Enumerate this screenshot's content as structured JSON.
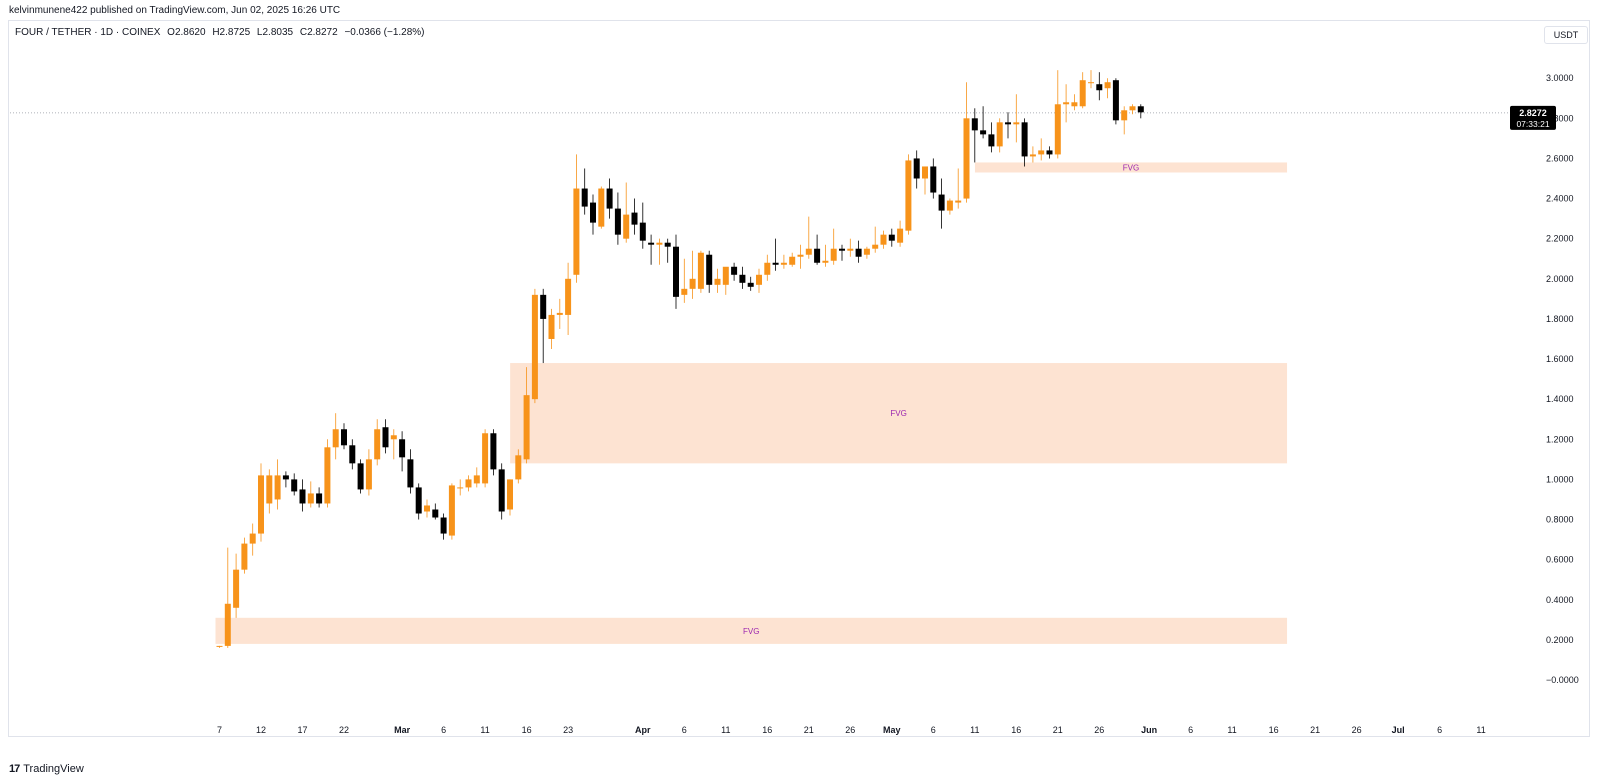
{
  "header": {
    "published": "kelvinmunene422 published on TradingView.com, Jun 02, 2025 16:26 UTC"
  },
  "legend": {
    "symbol": "FOUR / TETHER · 1D · COINEX",
    "open": "O2.8620",
    "high": "H2.8725",
    "low": "L2.8035",
    "close": "C2.8272",
    "change": "−0.0366 (−1.28%)"
  },
  "currency_button": "USDT",
  "price_label": {
    "price": "2.8272",
    "countdown": "07:33:21"
  },
  "footer": {
    "logo_text": "TradingView",
    "logo_mark": "17"
  },
  "colors": {
    "up": "#f7931a",
    "down": "#000000",
    "fvg_fill": "#fde3d2",
    "fvg_text": "#9c27b0",
    "axis_text": "#131722",
    "price_line": "#9598a1"
  },
  "chart_data": {
    "type": "candlestick",
    "y_ticks": [
      "3.0000",
      "2.8000",
      "2.6000",
      "2.4000",
      "2.2000",
      "2.0000",
      "1.8000",
      "1.6000",
      "1.4000",
      "1.2000",
      "1.0000",
      "0.8000",
      "0.6000",
      "0.4000",
      "0.2000",
      "−0.0000"
    ],
    "ylim": [
      -0.1,
      3.3
    ],
    "x_ticks": [
      {
        "label": "7",
        "day": 0
      },
      {
        "label": "12",
        "day": 5
      },
      {
        "label": "17",
        "day": 10
      },
      {
        "label": "22",
        "day": 15
      },
      {
        "label": "Mar",
        "day": 22
      },
      {
        "label": "6",
        "day": 27
      },
      {
        "label": "11",
        "day": 32
      },
      {
        "label": "16",
        "day": 37
      },
      {
        "label": "23",
        "day": 42
      },
      {
        "label": "Apr",
        "day": 51
      },
      {
        "label": "6",
        "day": 56
      },
      {
        "label": "11",
        "day": 61
      },
      {
        "label": "16",
        "day": 66
      },
      {
        "label": "21",
        "day": 71
      },
      {
        "label": "26",
        "day": 76
      },
      {
        "label": "May",
        "day": 81
      },
      {
        "label": "6",
        "day": 86
      },
      {
        "label": "11",
        "day": 91
      },
      {
        "label": "16",
        "day": 96
      },
      {
        "label": "21",
        "day": 101
      },
      {
        "label": "26",
        "day": 106
      },
      {
        "label": "Jun",
        "day": 112
      },
      {
        "label": "6",
        "day": 117
      },
      {
        "label": "11",
        "day": 122
      },
      {
        "label": "16",
        "day": 127
      },
      {
        "label": "21",
        "day": 132
      },
      {
        "label": "26",
        "day": 137
      },
      {
        "label": "Jul",
        "day": 142
      },
      {
        "label": "6",
        "day": 147
      },
      {
        "label": "11",
        "day": 152
      }
    ],
    "fvg_zones": [
      {
        "label": "FVG",
        "x0": 0,
        "x1": 128.5,
        "y0": 0.18,
        "y1": 0.31
      },
      {
        "label": "FVG",
        "x0": 35.5,
        "x1": 128.5,
        "y0": 1.08,
        "y1": 1.58
      },
      {
        "label": "FVG",
        "x0": 91.5,
        "x1": 128.5,
        "y0": 2.53,
        "y1": 2.58
      }
    ],
    "last_price": 2.8272,
    "candles": [
      [
        0.17,
        0.17,
        0.16,
        0.17
      ],
      [
        0.17,
        0.66,
        0.16,
        0.38
      ],
      [
        0.36,
        0.63,
        0.31,
        0.55
      ],
      [
        0.55,
        0.71,
        0.53,
        0.68
      ],
      [
        0.68,
        0.78,
        0.62,
        0.73
      ],
      [
        0.73,
        1.08,
        0.69,
        1.02
      ],
      [
        0.88,
        1.05,
        0.83,
        1.02
      ],
      [
        0.9,
        1.1,
        0.85,
        1.02
      ],
      [
        1.02,
        1.04,
        0.96,
        1.0
      ],
      [
        1.0,
        1.03,
        0.92,
        0.94
      ],
      [
        0.95,
        1.0,
        0.84,
        0.88
      ],
      [
        0.88,
        0.99,
        0.86,
        0.93
      ],
      [
        0.93,
        0.96,
        0.86,
        0.88
      ],
      [
        0.88,
        1.2,
        0.86,
        1.16
      ],
      [
        1.16,
        1.33,
        1.1,
        1.25
      ],
      [
        1.25,
        1.28,
        1.15,
        1.17
      ],
      [
        1.17,
        1.2,
        1.05,
        1.08
      ],
      [
        1.08,
        1.1,
        0.93,
        0.95
      ],
      [
        0.95,
        1.15,
        0.92,
        1.1
      ],
      [
        1.1,
        1.3,
        1.07,
        1.25
      ],
      [
        1.26,
        1.3,
        1.13,
        1.16
      ],
      [
        1.2,
        1.25,
        1.1,
        1.22
      ],
      [
        1.2,
        1.24,
        1.04,
        1.11
      ],
      [
        1.1,
        1.15,
        0.93,
        0.96
      ],
      [
        0.96,
        0.98,
        0.8,
        0.83
      ],
      [
        0.84,
        0.9,
        0.81,
        0.87
      ],
      [
        0.85,
        0.88,
        0.8,
        0.81
      ],
      [
        0.81,
        0.83,
        0.7,
        0.73
      ],
      [
        0.72,
        0.98,
        0.7,
        0.97
      ],
      [
        0.96,
        1.0,
        0.92,
        0.96
      ],
      [
        0.96,
        1.02,
        0.94,
        1.0
      ],
      [
        0.98,
        1.06,
        0.96,
        1.02
      ],
      [
        0.98,
        1.25,
        0.96,
        1.23
      ],
      [
        1.23,
        1.25,
        1.02,
        1.05
      ],
      [
        1.05,
        1.08,
        0.8,
        0.84
      ],
      [
        0.85,
        1.0,
        0.82,
        1.0
      ],
      [
        1.0,
        1.15,
        0.98,
        1.12
      ],
      [
        1.1,
        1.56,
        1.08,
        1.42
      ],
      [
        1.4,
        1.95,
        1.38,
        1.92
      ],
      [
        1.92,
        1.95,
        1.58,
        1.8
      ],
      [
        1.7,
        1.85,
        1.65,
        1.82
      ],
      [
        1.82,
        1.9,
        1.75,
        1.83
      ],
      [
        1.82,
        2.08,
        1.72,
        2.0
      ],
      [
        2.02,
        2.62,
        1.98,
        2.45
      ],
      [
        2.45,
        2.55,
        2.32,
        2.36
      ],
      [
        2.38,
        2.42,
        2.22,
        2.28
      ],
      [
        2.26,
        2.46,
        2.25,
        2.45
      ],
      [
        2.45,
        2.5,
        2.3,
        2.35
      ],
      [
        2.35,
        2.43,
        2.17,
        2.22
      ],
      [
        2.2,
        2.48,
        2.18,
        2.32
      ],
      [
        2.33,
        2.4,
        2.22,
        2.27
      ],
      [
        2.28,
        2.38,
        2.15,
        2.19
      ],
      [
        2.18,
        2.22,
        2.07,
        2.17
      ],
      [
        2.17,
        2.2,
        2.07,
        2.18
      ],
      [
        2.18,
        2.2,
        2.08,
        2.16
      ],
      [
        2.16,
        2.22,
        1.85,
        1.91
      ],
      [
        1.92,
        2.1,
        1.88,
        1.95
      ],
      [
        1.95,
        2.14,
        1.9,
        2.0
      ],
      [
        1.95,
        2.14,
        1.93,
        2.13
      ],
      [
        2.12,
        2.14,
        1.93,
        1.97
      ],
      [
        1.97,
        2.05,
        1.93,
        2.0
      ],
      [
        1.97,
        2.05,
        1.92,
        2.06
      ],
      [
        2.06,
        2.08,
        1.99,
        2.02
      ],
      [
        2.02,
        2.06,
        1.95,
        1.98
      ],
      [
        1.98,
        2.01,
        1.94,
        1.96
      ],
      [
        1.97,
        2.05,
        1.93,
        2.02
      ],
      [
        2.02,
        2.12,
        1.99,
        2.08
      ],
      [
        2.08,
        2.2,
        2.04,
        2.07
      ],
      [
        2.07,
        2.12,
        2.05,
        2.08
      ],
      [
        2.07,
        2.13,
        2.06,
        2.11
      ],
      [
        2.11,
        2.17,
        2.05,
        2.12
      ],
      [
        2.12,
        2.31,
        2.1,
        2.15
      ],
      [
        2.15,
        2.22,
        2.07,
        2.08
      ],
      [
        2.08,
        2.17,
        2.06,
        2.09
      ],
      [
        2.09,
        2.25,
        2.07,
        2.15
      ],
      [
        2.15,
        2.17,
        2.09,
        2.14
      ],
      [
        2.14,
        2.2,
        2.11,
        2.15
      ],
      [
        2.15,
        2.19,
        2.08,
        2.11
      ],
      [
        2.12,
        2.16,
        2.1,
        2.15
      ],
      [
        2.15,
        2.26,
        2.13,
        2.17
      ],
      [
        2.17,
        2.24,
        2.15,
        2.22
      ],
      [
        2.22,
        2.25,
        2.16,
        2.19
      ],
      [
        2.18,
        2.29,
        2.16,
        2.25
      ],
      [
        2.24,
        2.62,
        2.22,
        2.59
      ],
      [
        2.6,
        2.64,
        2.45,
        2.5
      ],
      [
        2.5,
        2.56,
        2.42,
        2.56
      ],
      [
        2.56,
        2.6,
        2.4,
        2.43
      ],
      [
        2.42,
        2.5,
        2.25,
        2.34
      ],
      [
        2.34,
        2.4,
        2.32,
        2.39
      ],
      [
        2.38,
        2.55,
        2.35,
        2.39
      ],
      [
        2.4,
        2.98,
        2.38,
        2.8
      ],
      [
        2.8,
        2.85,
        2.58,
        2.74
      ],
      [
        2.74,
        2.86,
        2.7,
        2.72
      ],
      [
        2.72,
        2.78,
        2.63,
        2.66
      ],
      [
        2.66,
        2.8,
        2.63,
        2.78
      ],
      [
        2.78,
        2.83,
        2.7,
        2.77
      ],
      [
        2.77,
        2.92,
        2.68,
        2.78
      ],
      [
        2.78,
        2.8,
        2.56,
        2.61
      ],
      [
        2.61,
        2.66,
        2.58,
        2.62
      ],
      [
        2.62,
        2.7,
        2.59,
        2.64
      ],
      [
        2.64,
        2.66,
        2.6,
        2.62
      ],
      [
        2.62,
        3.04,
        2.6,
        2.87
      ],
      [
        2.87,
        2.97,
        2.78,
        2.88
      ],
      [
        2.86,
        2.92,
        2.84,
        2.88
      ],
      [
        2.86,
        3.03,
        2.85,
        2.99
      ],
      [
        2.98,
        3.04,
        2.95,
        2.98
      ],
      [
        2.97,
        3.03,
        2.89,
        2.94
      ],
      [
        2.95,
        3.0,
        2.9,
        2.98
      ],
      [
        2.99,
        3.0,
        2.77,
        2.79
      ],
      [
        2.79,
        2.86,
        2.72,
        2.84
      ],
      [
        2.84,
        2.87,
        2.82,
        2.86
      ],
      [
        2.86,
        2.87,
        2.8,
        2.83
      ]
    ]
  }
}
